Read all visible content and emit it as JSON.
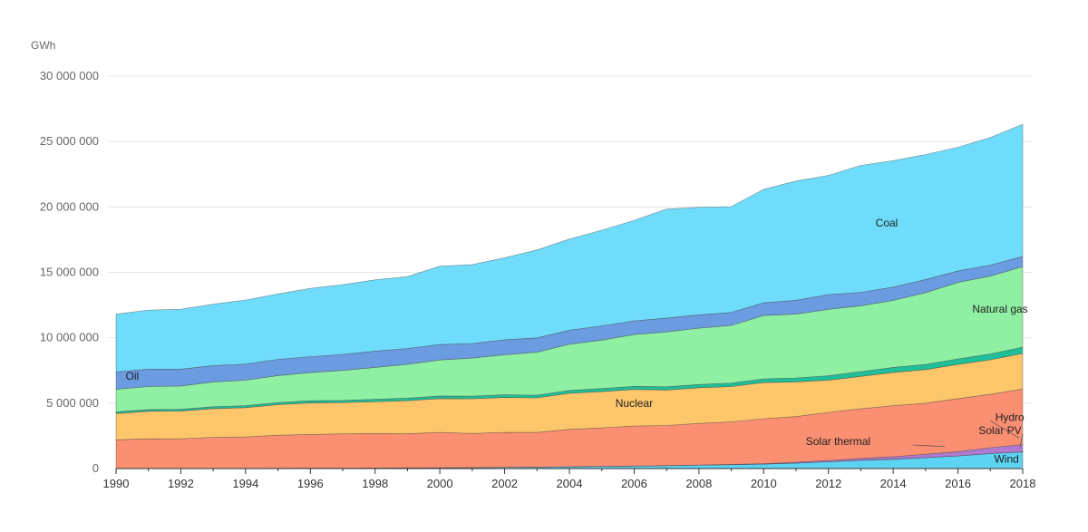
{
  "chart_data": {
    "type": "area",
    "stacked": true,
    "ylabel": "GWh",
    "ylim": [
      0,
      30000000
    ],
    "y_ticks": [
      0,
      5000000,
      10000000,
      15000000,
      20000000,
      25000000,
      30000000
    ],
    "y_tick_labels": [
      "0",
      "5 000 000",
      "10 000 000",
      "15 000 000",
      "20 000 000",
      "25 000 000",
      "30 000 000"
    ],
    "x_tick_labels": [
      "1990",
      "1992",
      "1994",
      "1996",
      "1998",
      "2000",
      "2002",
      "2004",
      "2006",
      "2008",
      "2010",
      "2012",
      "2014",
      "2016",
      "2018"
    ],
    "grid": true,
    "x": [
      1990,
      1991,
      1992,
      1993,
      1994,
      1995,
      1996,
      1997,
      1998,
      1999,
      2000,
      2001,
      2002,
      2003,
      2004,
      2005,
      2006,
      2007,
      2008,
      2009,
      2010,
      2011,
      2012,
      2013,
      2014,
      2015,
      2016,
      2017,
      2018
    ],
    "series": [
      {
        "name": "Wind",
        "color": "#5dd3f3",
        "values": [
          4000,
          6000,
          8000,
          10000,
          15000,
          20000,
          25000,
          30000,
          40000,
          50000,
          60000,
          70000,
          90000,
          110000,
          140000,
          160000,
          190000,
          220000,
          260000,
          300000,
          340000,
          420000,
          520000,
          630000,
          710000,
          830000,
          960000,
          1140000,
          1270000
        ]
      },
      {
        "name": "Solar thermal",
        "color": "#e0a060",
        "values": [
          1000,
          1000,
          1000,
          1000,
          1000,
          1000,
          1000,
          1000,
          1000,
          1000,
          1000,
          1000,
          1000,
          1000,
          1000,
          1000,
          1000,
          1000,
          1000,
          1000,
          2000,
          3000,
          5000,
          6000,
          9000,
          10000,
          11000,
          12000,
          12000
        ]
      },
      {
        "name": "Solar PV",
        "color": "#b07ad0",
        "values": [
          1000,
          1000,
          1000,
          1000,
          1000,
          1000,
          1000,
          1000,
          1000,
          1000,
          1000,
          2000,
          2000,
          3000,
          3000,
          4000,
          5000,
          7000,
          12000,
          20000,
          32000,
          63000,
          99000,
          139000,
          190000,
          256000,
          328000,
          443000,
          554000
        ]
      },
      {
        "name": "Hydro",
        "color": "#fb8f72",
        "values": [
          2190000,
          2270000,
          2260000,
          2380000,
          2400000,
          2530000,
          2580000,
          2620000,
          2630000,
          2610000,
          2700000,
          2610000,
          2680000,
          2650000,
          2850000,
          2950000,
          3050000,
          3060000,
          3180000,
          3250000,
          3440000,
          3490000,
          3670000,
          3790000,
          3900000,
          3900000,
          4050000,
          4080000,
          4250000
        ]
      },
      {
        "name": "Nuclear",
        "color": "#fdc66a",
        "values": [
          2010000,
          2100000,
          2120000,
          2190000,
          2240000,
          2330000,
          2410000,
          2390000,
          2440000,
          2530000,
          2590000,
          2650000,
          2660000,
          2640000,
          2760000,
          2770000,
          2800000,
          2720000,
          2730000,
          2700000,
          2760000,
          2650000,
          2470000,
          2480000,
          2540000,
          2570000,
          2610000,
          2640000,
          2710000
        ]
      },
      {
        "name": "",
        "color": "#1fbf9a",
        "values": [
          130000,
          130000,
          140000,
          140000,
          150000,
          160000,
          170000,
          170000,
          180000,
          190000,
          200000,
          200000,
          210000,
          210000,
          220000,
          230000,
          240000,
          240000,
          250000,
          260000,
          280000,
          300000,
          330000,
          360000,
          380000,
          400000,
          420000,
          450000,
          480000
        ]
      },
      {
        "name": "Natural gas",
        "color": "#8ff0a4",
        "values": [
          1730000,
          1760000,
          1780000,
          1900000,
          1950000,
          2070000,
          2150000,
          2290000,
          2440000,
          2590000,
          2750000,
          2910000,
          3060000,
          3280000,
          3530000,
          3700000,
          3960000,
          4200000,
          4300000,
          4410000,
          4850000,
          4880000,
          5080000,
          5040000,
          5120000,
          5480000,
          5850000,
          5950000,
          6160000
        ]
      },
      {
        "name": "Oil",
        "color": "#6b9be0",
        "values": [
          1320000,
          1330000,
          1290000,
          1250000,
          1230000,
          1240000,
          1220000,
          1230000,
          1250000,
          1200000,
          1180000,
          1110000,
          1140000,
          1100000,
          1070000,
          1100000,
          1040000,
          1060000,
          1020000,
          1000000,
          970000,
          1060000,
          1120000,
          1030000,
          1020000,
          1010000,
          880000,
          830000,
          780000
        ]
      },
      {
        "name": "Coal",
        "color": "#6fdcfc",
        "values": [
          4420000,
          4510000,
          4580000,
          4690000,
          4900000,
          5000000,
          5220000,
          5330000,
          5440000,
          5500000,
          5990000,
          6040000,
          6270000,
          6720000,
          6970000,
          7310000,
          7690000,
          8330000,
          8220000,
          8080000,
          8670000,
          9120000,
          9120000,
          9700000,
          9670000,
          9550000,
          9450000,
          9760000,
          10100000
        ]
      }
    ],
    "labels": [
      {
        "text": "Coal",
        "x": 2013.8,
        "y": 18500000
      },
      {
        "text": "Natural gas",
        "x": 2017.3,
        "y": 11900000
      },
      {
        "text": "Nuclear",
        "x": 2006,
        "y": 4700000
      },
      {
        "text": "Oil",
        "x": 1990.5,
        "y": 6800000
      },
      {
        "text": "Hydro",
        "x": 2017.6,
        "y": 3650000
      },
      {
        "text": "Solar PV",
        "x": 2017.3,
        "y": 2650000
      },
      {
        "text": "Solar thermal",
        "x": 2012.3,
        "y": 1800000
      },
      {
        "text": "Wind",
        "x": 2017.5,
        "y": 450000
      }
    ]
  }
}
